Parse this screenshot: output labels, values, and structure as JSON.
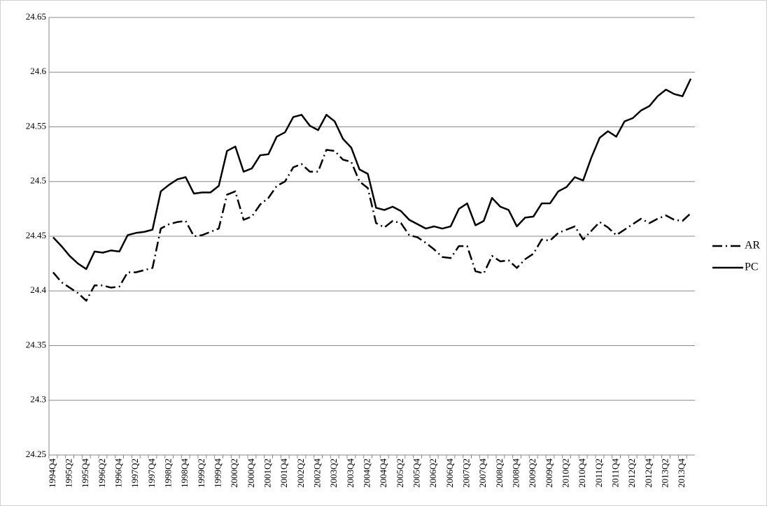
{
  "chart_data": {
    "type": "line",
    "categories": [
      "1994Q4",
      null,
      "1995Q2",
      null,
      "1995Q4",
      null,
      "1996Q2",
      null,
      "1996Q4",
      null,
      "1997Q2",
      null,
      "1997Q4",
      null,
      "1998Q2",
      null,
      "1998Q4",
      null,
      "1999Q2",
      null,
      "1999Q4",
      null,
      "2000Q2",
      null,
      "2000Q4",
      null,
      "2001Q2",
      null,
      "2001Q4",
      null,
      "2002Q2",
      null,
      "2002Q4",
      null,
      "2003Q2",
      null,
      "2003Q4",
      null,
      "2004Q2",
      null,
      "2004Q4",
      null,
      "2005Q2",
      null,
      "2005Q4",
      null,
      "2006Q2",
      null,
      "2006Q4",
      null,
      "2007Q2",
      null,
      "2007Q4",
      null,
      "2008Q2",
      null,
      "2008Q4",
      null,
      "2009Q2",
      null,
      "2009Q4",
      null,
      "2010Q2",
      null,
      "2010Q4",
      null,
      "2011Q2",
      null,
      "2011Q4",
      null,
      "2012Q2",
      null,
      "2012Q4",
      null,
      "2013Q2",
      null,
      "2013Q4",
      null
    ],
    "series": [
      {
        "name": "AR",
        "color": "#000000",
        "dash": "14,5,2,5",
        "values": [
          24.417,
          24.408,
          24.403,
          24.398,
          24.391,
          24.405,
          24.405,
          24.403,
          24.404,
          24.417,
          24.417,
          24.419,
          24.421,
          24.457,
          24.461,
          24.463,
          24.464,
          24.45,
          24.451,
          24.454,
          24.457,
          24.488,
          24.491,
          24.465,
          24.468,
          24.479,
          24.485,
          24.496,
          24.5,
          24.513,
          24.516,
          24.509,
          24.509,
          24.529,
          24.528,
          24.52,
          24.518,
          24.5,
          24.494,
          24.462,
          24.458,
          24.464,
          24.462,
          24.451,
          24.449,
          24.444,
          24.438,
          24.431,
          24.43,
          24.441,
          24.441,
          24.418,
          24.416,
          24.432,
          24.427,
          24.428,
          24.421,
          24.429,
          24.434,
          24.447,
          24.446,
          24.453,
          24.456,
          24.459,
          24.447,
          24.455,
          24.463,
          24.458,
          24.451,
          24.456,
          24.461,
          24.466,
          24.462,
          24.466,
          24.469,
          24.465,
          24.464,
          24.471
        ]
      },
      {
        "name": "PC",
        "color": "#000000",
        "values": [
          24.449,
          24.441,
          24.432,
          24.425,
          24.42,
          24.436,
          24.435,
          24.437,
          24.436,
          24.451,
          24.453,
          24.454,
          24.456,
          24.491,
          24.497,
          24.502,
          24.504,
          24.489,
          24.49,
          24.49,
          24.496,
          24.528,
          24.532,
          24.509,
          24.512,
          24.524,
          24.525,
          24.541,
          24.545,
          24.559,
          24.561,
          24.551,
          24.547,
          24.561,
          24.555,
          24.539,
          24.531,
          24.511,
          24.507,
          24.476,
          24.474,
          24.477,
          24.473,
          24.465,
          24.461,
          24.457,
          24.459,
          24.457,
          24.459,
          24.475,
          24.48,
          24.46,
          24.464,
          24.485,
          24.477,
          24.474,
          24.459,
          24.467,
          24.468,
          24.48,
          24.48,
          24.491,
          24.495,
          24.504,
          24.501,
          24.522,
          24.54,
          24.546,
          24.541,
          24.555,
          24.558,
          24.565,
          24.569,
          24.578,
          24.584,
          24.58,
          24.578,
          24.594
        ]
      }
    ],
    "ylim": [
      24.25,
      24.65
    ],
    "yticks": [
      24.25,
      24.3,
      24.35,
      24.4,
      24.45,
      24.5,
      24.55,
      24.6,
      24.65
    ],
    "grid": true,
    "legend": "right"
  }
}
